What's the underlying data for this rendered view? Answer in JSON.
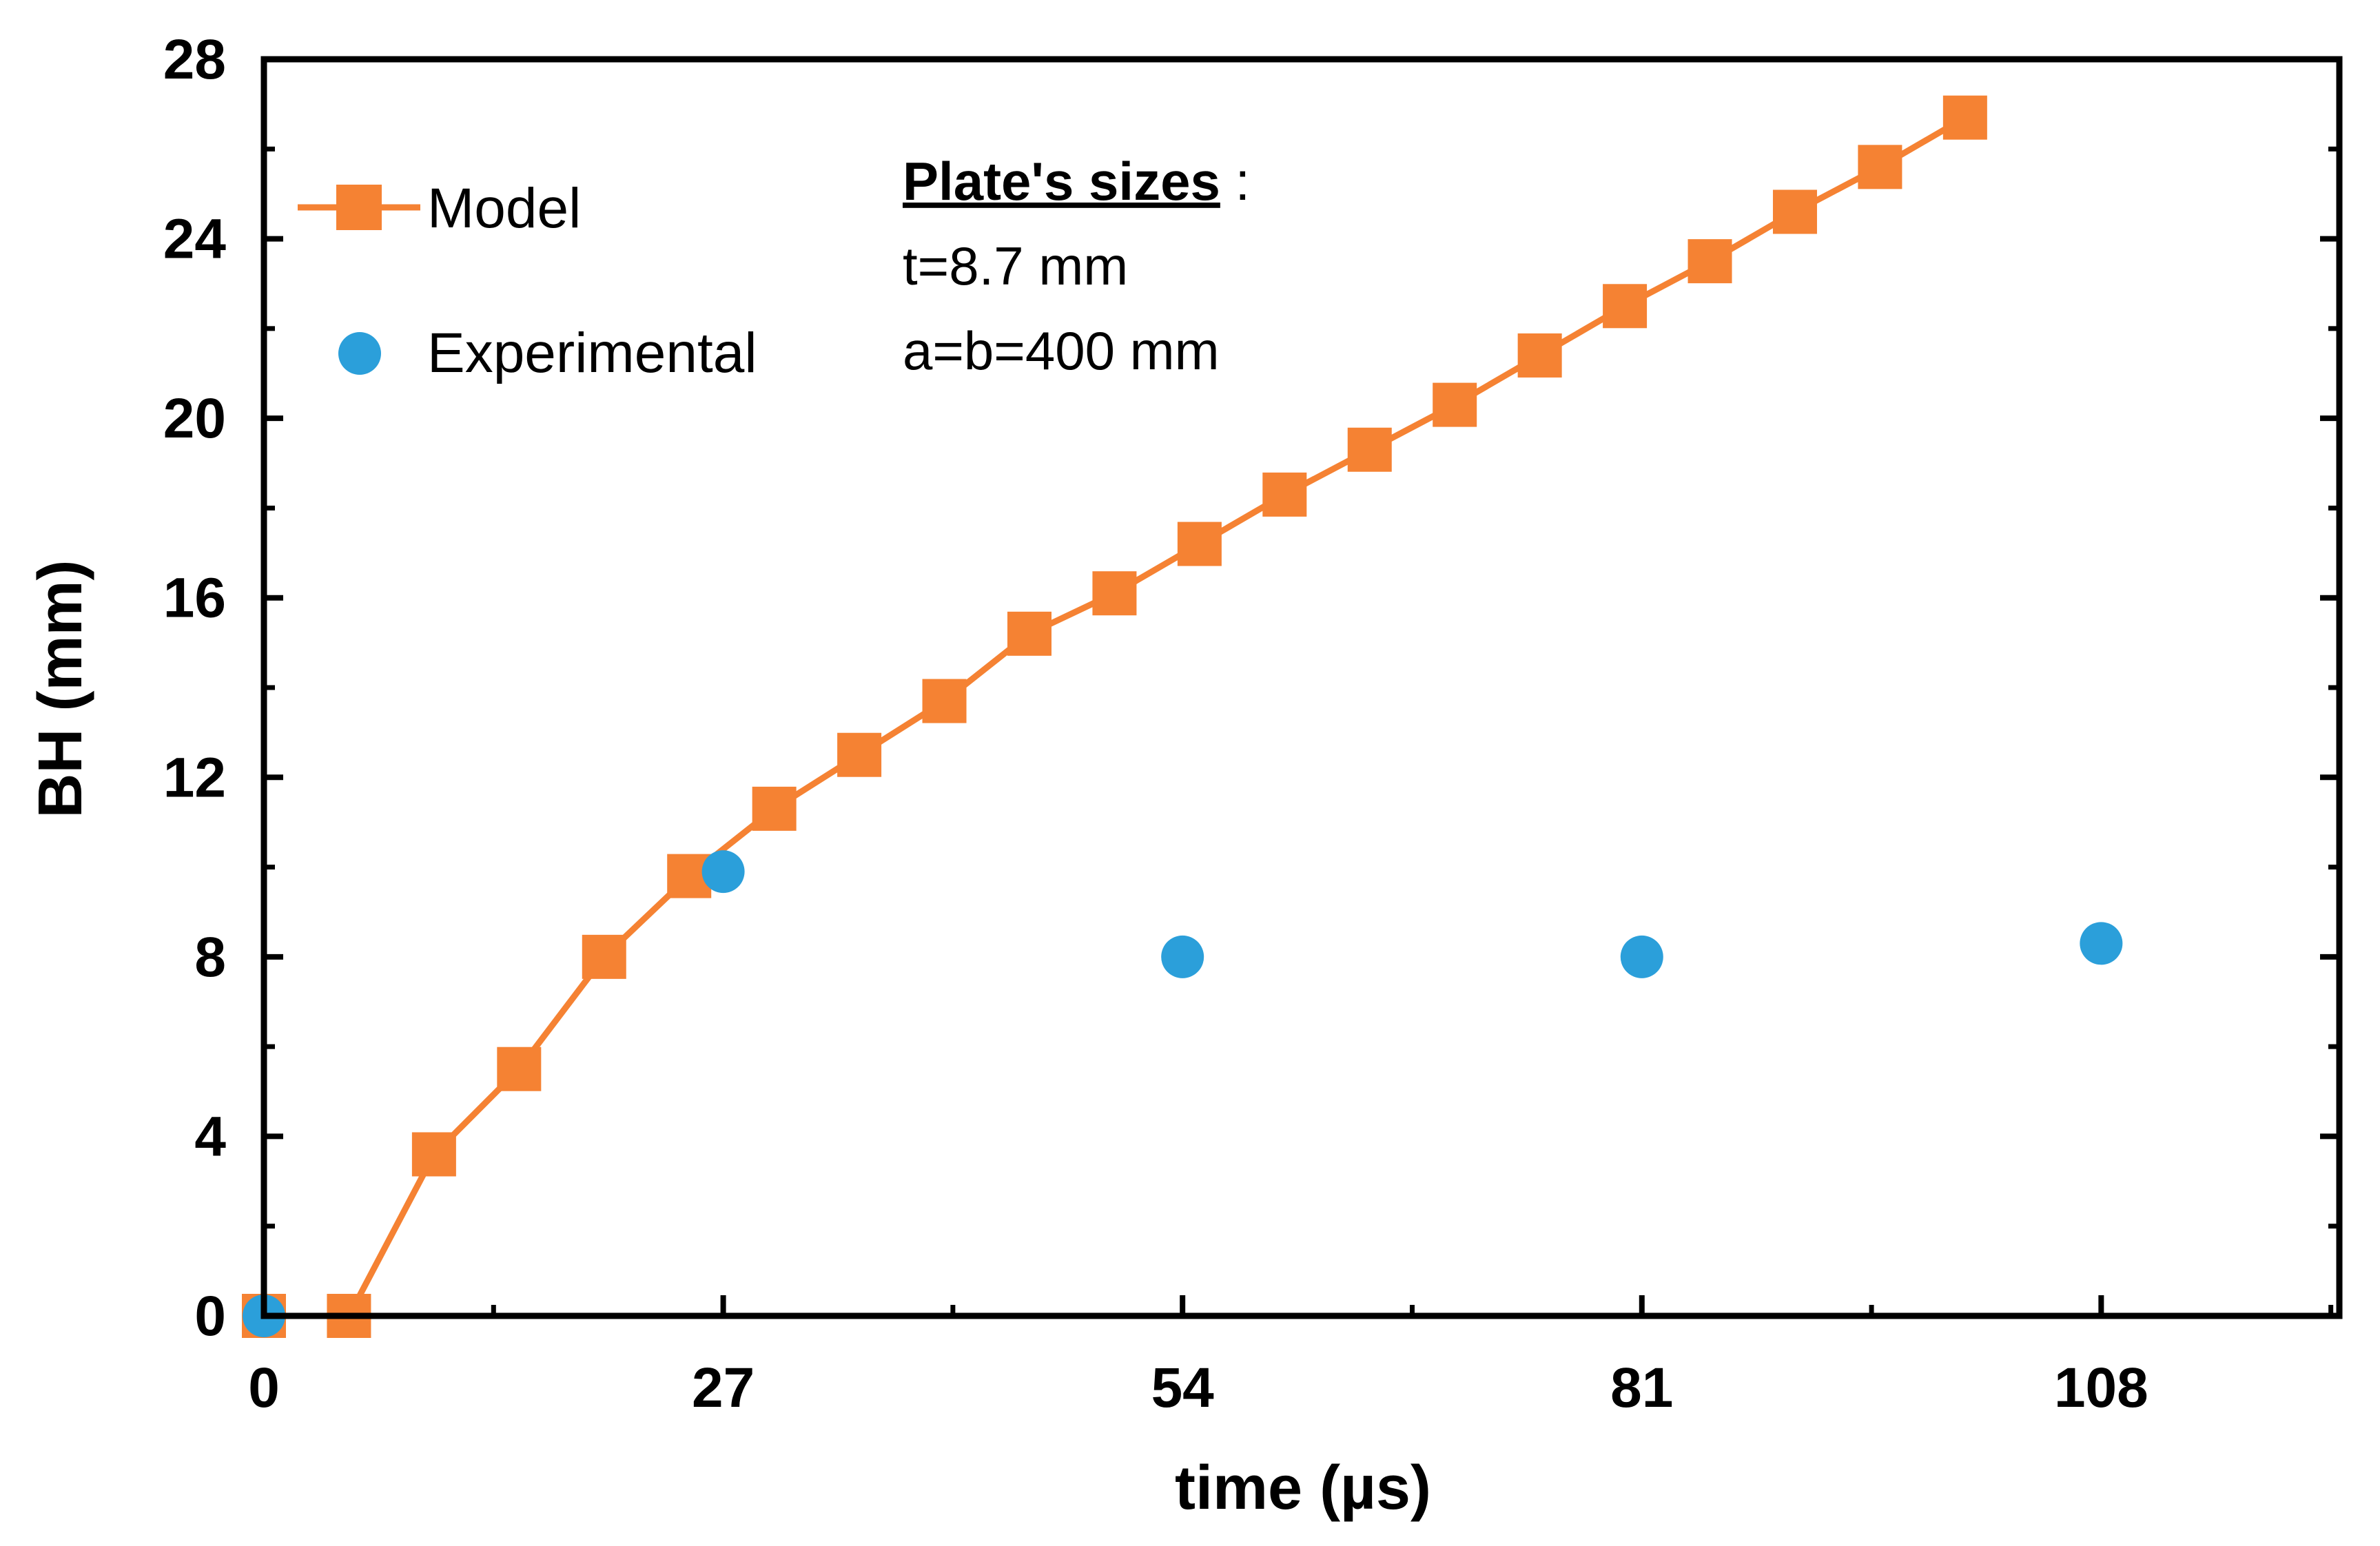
{
  "chart_data": {
    "type": "line",
    "title": "",
    "xlabel": "time (µs)",
    "ylabel": "BH (mm)",
    "xlim": [
      0,
      122
    ],
    "ylim": [
      0,
      28
    ],
    "xticks": [
      0,
      27,
      54,
      81,
      108
    ],
    "yticks": [
      0,
      4,
      8,
      12,
      16,
      20,
      24,
      28
    ],
    "legend_position": "top-left",
    "series": [
      {
        "name": "Model",
        "kind": "line-with-square-markers",
        "color": "#F58233",
        "x": [
          0,
          5,
          10,
          15,
          20,
          25,
          30,
          35,
          40,
          45,
          50,
          55,
          60,
          65,
          70,
          75,
          80,
          85,
          90,
          95,
          100
        ],
        "y": [
          0,
          0,
          3.6,
          5.5,
          8.0,
          9.8,
          11.3,
          12.5,
          13.7,
          15.2,
          16.1,
          17.2,
          18.3,
          19.3,
          20.3,
          21.4,
          22.5,
          23.5,
          24.6,
          25.6,
          26.7
        ]
      },
      {
        "name": "Experimental",
        "kind": "scatter-circles",
        "color": "#2B9FDA",
        "x": [
          0,
          27,
          54,
          81,
          108
        ],
        "y": [
          0,
          9.9,
          8.0,
          8.0,
          8.3
        ]
      }
    ],
    "annotation": {
      "title": "Plate's sizes",
      "title_suffix": " :",
      "lines": [
        "t=8.7 mm",
        "a=b=400 mm"
      ]
    }
  }
}
